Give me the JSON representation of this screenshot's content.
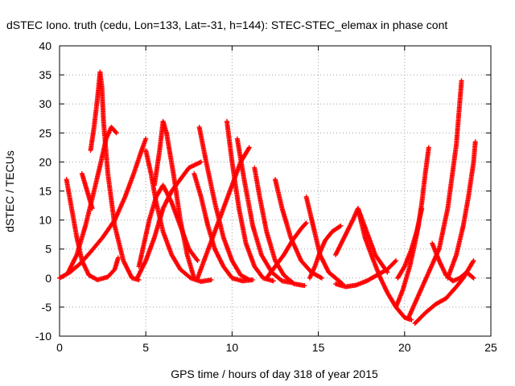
{
  "chart_data": {
    "type": "scatter",
    "title": "dSTEC Iono. truth (cedu, Lon=133, Lat=-31, h=144): STEC-STEC_elemax in phase cont",
    "xlabel": "GPS time / hours of day 318 of year 2015",
    "ylabel": "dSTEC  / TECUs",
    "xlim": [
      0,
      25
    ],
    "ylim": [
      -10,
      40
    ],
    "xticks": [
      "0",
      "5",
      "10",
      "15",
      "20",
      "25"
    ],
    "yticks": [
      "-10",
      "-5",
      "0",
      "5",
      "10",
      "15",
      "20",
      "25",
      "30",
      "35",
      "40"
    ],
    "grid": true,
    "marker": "+",
    "color": "#ff0000",
    "series": [
      {
        "x": [
          0.4,
          0.7,
          1.0,
          1.3,
          1.7,
          2.2,
          2.8,
          3.2,
          3.4
        ],
        "y": [
          17,
          12,
          7,
          3,
          0.5,
          -0.3,
          0.2,
          1.5,
          3.5
        ]
      },
      {
        "x": [
          1.3,
          1.5,
          1.7,
          1.9
        ],
        "y": [
          18,
          16,
          14,
          12
        ]
      },
      {
        "x": [
          1.8,
          2.0,
          2.2,
          2.35,
          2.45,
          2.55,
          2.8,
          3.2,
          3.7,
          4.2,
          4.6
        ],
        "y": [
          22,
          26,
          31,
          35.5,
          33,
          27,
          18,
          9,
          3,
          0,
          -0.3
        ]
      },
      {
        "x": [
          0.5,
          1.0,
          1.5,
          2.0,
          2.4,
          2.7,
          3.0,
          3.3
        ],
        "y": [
          1,
          4,
          9,
          15,
          20,
          24,
          26,
          25
        ]
      },
      {
        "x": [
          0,
          0.6,
          1.2,
          1.8,
          2.5,
          3.2,
          3.8,
          4.3,
          4.7,
          5.0
        ],
        "y": [
          0,
          1,
          2.5,
          4.5,
          7,
          10,
          14,
          18,
          21.5,
          24
        ]
      },
      {
        "x": [
          4.6,
          4.9,
          5.2,
          5.6,
          6.0,
          6.5,
          7.0,
          7.5,
          8.0
        ],
        "y": [
          2,
          6,
          10,
          14,
          16,
          13,
          9,
          5,
          3
        ]
      },
      {
        "x": [
          5.0,
          5.3,
          5.6,
          6.0,
          6.5,
          7.0,
          7.6,
          8.2,
          8.8
        ],
        "y": [
          22,
          18,
          13,
          8,
          4,
          1.5,
          0,
          -0.6,
          -0.3
        ]
      },
      {
        "x": [
          5.5,
          5.8,
          6.0,
          6.2,
          6.6,
          7.0,
          7.4,
          7.8
        ],
        "y": [
          16,
          22,
          27,
          25,
          18,
          10,
          4,
          0
        ]
      },
      {
        "x": [
          4.5,
          5.0,
          5.5,
          6.0,
          6.5,
          7.0,
          7.5,
          8.2
        ],
        "y": [
          0,
          3,
          7,
          12,
          15,
          17,
          19,
          20
        ]
      },
      {
        "x": [
          7.8,
          8.2,
          8.6,
          9.0,
          9.5,
          10.0,
          10.6,
          11.2
        ],
        "y": [
          18,
          14,
          9,
          5,
          2,
          0,
          -0.5,
          -0.3
        ]
      },
      {
        "x": [
          8.1,
          8.5,
          9.0,
          9.5,
          10.0,
          10.5,
          11.0
        ],
        "y": [
          26,
          20,
          13,
          7,
          3,
          0.5,
          -0.3
        ]
      },
      {
        "x": [
          8.0,
          8.5,
          9.0,
          9.5,
          10.0,
          10.5,
          11.0
        ],
        "y": [
          0,
          4,
          8,
          12,
          16,
          20,
          22.5
        ]
      },
      {
        "x": [
          9.7,
          10.0,
          10.4,
          10.8,
          11.3,
          11.8,
          12.4
        ],
        "y": [
          27,
          20,
          12,
          6,
          2,
          0,
          -0.5
        ]
      },
      {
        "x": [
          10.3,
          10.7,
          11.2,
          11.7,
          12.3,
          12.9,
          13.5
        ],
        "y": [
          24,
          17,
          9,
          4,
          1,
          -0.5,
          -0.8
        ]
      },
      {
        "x": [
          11.3,
          11.6,
          12.0,
          12.5,
          13.0,
          13.6,
          14.2
        ],
        "y": [
          19,
          14,
          8,
          3,
          0.5,
          -1,
          -1.3
        ]
      },
      {
        "x": [
          12.5,
          12.9,
          13.4,
          14.0,
          14.6,
          15.2
        ],
        "y": [
          17,
          12,
          7,
          3,
          1,
          0
        ]
      },
      {
        "x": [
          12.0,
          12.5,
          13.0,
          13.5,
          14.0,
          14.3
        ],
        "y": [
          0,
          2,
          4,
          6.5,
          8.5,
          9.5
        ]
      },
      {
        "x": [
          14.3,
          14.7,
          15.1,
          15.6,
          16.0,
          16.4
        ],
        "y": [
          14,
          9,
          4,
          1,
          0,
          -1
        ]
      },
      {
        "x": [
          14.5,
          14.8,
          15.1,
          15.4,
          15.8,
          16.3
        ],
        "y": [
          0,
          2,
          4.5,
          6.5,
          8,
          9
        ]
      },
      {
        "x": [
          16.0,
          16.5,
          17.0,
          17.3,
          17.8,
          18.3,
          19.0
        ],
        "y": [
          4,
          7,
          10,
          12,
          8,
          4,
          1
        ]
      },
      {
        "x": [
          17.3,
          17.7,
          18.2,
          18.6,
          19.0,
          19.5,
          20.0,
          20.4
        ],
        "y": [
          12,
          7,
          3,
          0,
          -2.5,
          -5,
          -6.8,
          -7.2
        ]
      },
      {
        "x": [
          16.0,
          16.6,
          17.2,
          17.8,
          18.4,
          19.0,
          19.5
        ],
        "y": [
          -1,
          -1.5,
          -1.2,
          -0.5,
          0.5,
          1.5,
          3
        ]
      },
      {
        "x": [
          19.5,
          19.9,
          20.3,
          20.6,
          20.8,
          21.0,
          21.2,
          21.4
        ],
        "y": [
          -5,
          -2,
          2,
          6,
          9,
          13,
          18,
          22.5
        ]
      },
      {
        "x": [
          19.6,
          20.0,
          20.4,
          20.7,
          21.0
        ],
        "y": [
          0,
          2,
          5,
          8,
          12
        ]
      },
      {
        "x": [
          20.6,
          21.2,
          21.8,
          22.4,
          23.0,
          23.4,
          23.8,
          24.0
        ],
        "y": [
          -7.8,
          -6,
          -4.5,
          -3.5,
          -1.5,
          0,
          2,
          3
        ]
      },
      {
        "x": [
          20.2,
          20.8,
          21.4,
          22.0,
          22.5,
          23.0,
          23.3
        ],
        "y": [
          -7,
          -3,
          1,
          5,
          12,
          23,
          34
        ]
      },
      {
        "x": [
          21.6,
          22.0,
          22.4,
          22.8,
          23.2,
          23.6,
          24.0
        ],
        "y": [
          6,
          3,
          0.5,
          -0.5,
          0,
          1,
          0
        ]
      },
      {
        "x": [
          22.5,
          23.0,
          23.4,
          23.7,
          24.0,
          24.1
        ],
        "y": [
          0,
          4,
          9,
          14,
          20,
          23.5
        ]
      }
    ]
  }
}
